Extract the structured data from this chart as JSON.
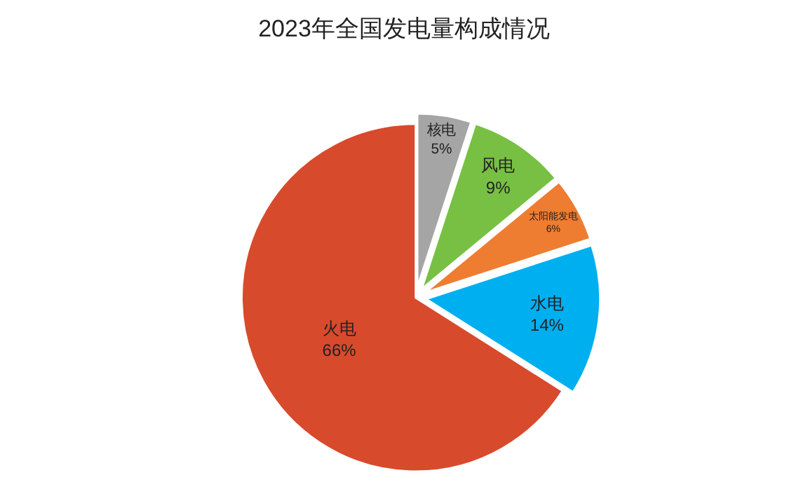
{
  "chart_data": {
    "type": "pie",
    "title": "2023年全国发电量构成情况",
    "categories": [
      "核电",
      "风电",
      "太阳能发电",
      "水电",
      "火电"
    ],
    "values": [
      5,
      9,
      6,
      14,
      66
    ],
    "value_labels": [
      "5%",
      "9%",
      "6%",
      "14%",
      "66%"
    ],
    "colors": [
      "#a5a5a5",
      "#77c043",
      "#ee7d31",
      "#00aff0",
      "#d84a2c"
    ],
    "legend": false
  }
}
